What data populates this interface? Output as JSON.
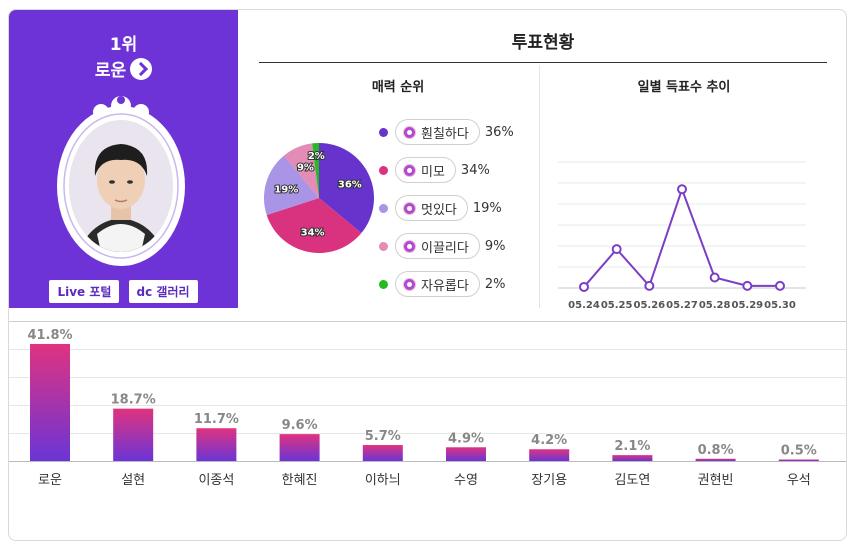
{
  "profile": {
    "rank": "1위",
    "name": "로운",
    "live_btn": "Live 포털",
    "dc_btn": "dc 갤러리"
  },
  "vote_status": {
    "title": "투표현황",
    "charm_title": "매력 순위",
    "trend_title": "일별 득표수 추이"
  },
  "chart_data": [
    {
      "type": "pie",
      "title": "매력 순위",
      "slices": [
        {
          "label": "훤칠하다",
          "value": 36,
          "pct_label": "36%",
          "color": "#6633cc"
        },
        {
          "label": "미모",
          "value": 34,
          "pct_label": "34%",
          "color": "#d9337f"
        },
        {
          "label": "멋있다",
          "value": 19,
          "pct_label": "19%",
          "color": "#a994e6"
        },
        {
          "label": "이끌리다",
          "value": 9,
          "pct_label": "9%",
          "color": "#e38cb5"
        },
        {
          "label": "자유롭다",
          "value": 2,
          "pct_label": "2%",
          "color": "#22bb22"
        }
      ]
    },
    {
      "type": "line",
      "title": "일별 득표수 추이",
      "x": [
        "05.24",
        "05.25",
        "05.26",
        "05.27",
        "05.28",
        "05.29",
        "05.30"
      ],
      "values": [
        1,
        37,
        2,
        94,
        10,
        2,
        2
      ],
      "ylim": [
        0,
        120
      ],
      "grid": true,
      "color": "#7a3fc4"
    },
    {
      "type": "bar",
      "categories": [
        "로운",
        "설현",
        "이종석",
        "한혜진",
        "이하늬",
        "수영",
        "장기용",
        "김도연",
        "권현빈",
        "우석"
      ],
      "values": [
        41.8,
        18.7,
        11.7,
        9.6,
        5.7,
        4.9,
        4.2,
        2.1,
        0.8,
        0.5
      ],
      "value_labels": [
        "41.8%",
        "18.7%",
        "11.7%",
        "9.6%",
        "5.7%",
        "4.9%",
        "4.2%",
        "2.1%",
        "0.8%",
        "0.5%"
      ],
      "ylim": [
        0,
        50
      ],
      "grid": true,
      "color_top": "#e0337f",
      "color_bottom": "#6a35d6"
    }
  ]
}
